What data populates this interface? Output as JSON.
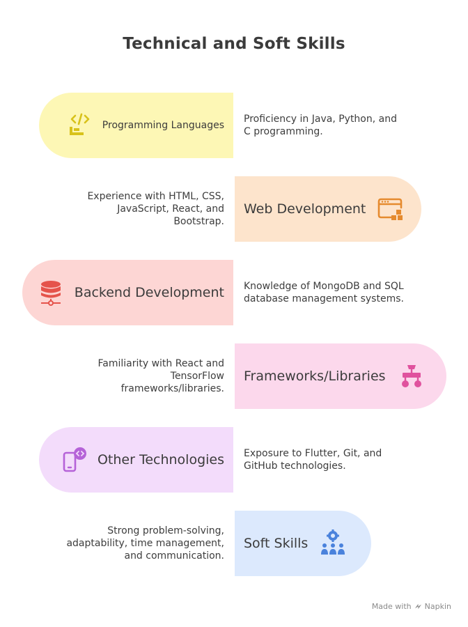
{
  "title": "Technical and Soft Skills",
  "skills": [
    {
      "label": "Programming Languages",
      "description": "Proficiency in Java, Python, and C programming.",
      "color": "#fdf7b5",
      "icon": "code-icon",
      "icon_color": "#d8c21a"
    },
    {
      "label": "Web Development",
      "description": "Experience with HTML, CSS, JavaScript, React, and Bootstrap.",
      "color": "#fde4cc",
      "icon": "browser-window-icon",
      "icon_color": "#e58a2e"
    },
    {
      "label": "Backend Development",
      "description": "Knowledge of MongoDB and SQL database management systems.",
      "color": "#fdd6d4",
      "icon": "database-icon",
      "icon_color": "#e5534b"
    },
    {
      "label": "Frameworks/Libraries",
      "description": "Familiarity with React and TensorFlow frameworks/libraries.",
      "color": "#fcd8ec",
      "icon": "hierarchy-icon",
      "icon_color": "#e0529e"
    },
    {
      "label": "Other Technologies",
      "description": "Exposure to Flutter, Git, and GitHub technologies.",
      "color": "#f3dcfb",
      "icon": "mobile-code-icon",
      "icon_color": "#b562d8"
    },
    {
      "label": "Soft Skills",
      "description": "Strong problem-solving, adaptability, time management, and communication.",
      "color": "#dce9fd",
      "icon": "team-gear-icon",
      "icon_color": "#4a82dc"
    }
  ],
  "footer": {
    "text": "Made with",
    "brand": "Napkin"
  }
}
